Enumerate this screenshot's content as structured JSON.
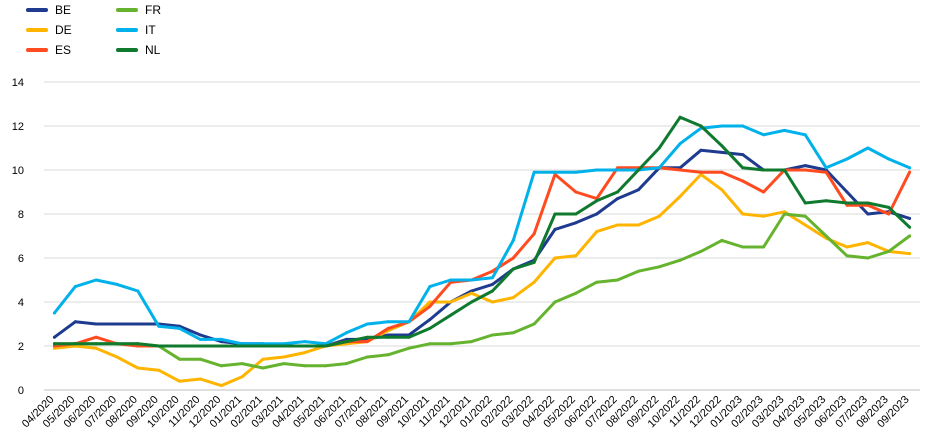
{
  "chart_data": {
    "type": "line",
    "title": "",
    "xlabel": "",
    "ylabel": "",
    "ylim": [
      0,
      14
    ],
    "yticks": [
      0,
      2,
      4,
      6,
      8,
      10,
      12,
      14
    ],
    "grid": "horizontal",
    "legend_position": "top-left",
    "categories": [
      "04/2020",
      "05/2020",
      "06/2020",
      "07/2020",
      "08/2020",
      "09/2020",
      "10/2020",
      "11/2020",
      "12/2020",
      "01/2021",
      "02/2021",
      "03/2021",
      "04/2021",
      "05/2021",
      "06/2021",
      "07/2021",
      "08/2021",
      "09/2021",
      "10/2021",
      "11/2021",
      "12/2021",
      "01/2022",
      "02/2022",
      "03/2022",
      "04/2022",
      "05/2022",
      "06/2022",
      "07/2022",
      "08/2022",
      "09/2022",
      "10/2022",
      "11/2022",
      "12/2022",
      "01/2023",
      "02/2023",
      "03/2023",
      "04/2023",
      "05/2023",
      "06/2023",
      "07/2023",
      "08/2023",
      "09/2023"
    ],
    "series": [
      {
        "name": "BE",
        "color": "#1f3b8f",
        "values": [
          2.4,
          3.1,
          3.0,
          3.0,
          3.0,
          3.0,
          2.9,
          2.5,
          2.2,
          2.1,
          2.1,
          2.0,
          2.0,
          2.0,
          2.3,
          2.3,
          2.5,
          2.5,
          3.2,
          4.0,
          4.5,
          4.8,
          5.5,
          5.9,
          7.3,
          7.6,
          8.0,
          8.7,
          9.1,
          10.1,
          10.1,
          10.9,
          10.8,
          10.7,
          10.0,
          10.0,
          10.2,
          10.0,
          9.0,
          8.0,
          8.1,
          7.8
        ]
      },
      {
        "name": "DE",
        "color": "#ffb400",
        "values": [
          1.9,
          2.0,
          1.9,
          1.5,
          1.0,
          0.9,
          0.4,
          0.5,
          0.2,
          0.6,
          1.4,
          1.5,
          1.7,
          2.0,
          2.1,
          2.2,
          2.7,
          3.1,
          4.0,
          4.0,
          4.4,
          4.0,
          4.2,
          4.9,
          6.0,
          6.1,
          7.2,
          7.5,
          7.5,
          7.9,
          8.8,
          9.8,
          9.1,
          8.0,
          7.9,
          8.1,
          7.5,
          6.9,
          6.5,
          6.7,
          6.3,
          6.2
        ]
      },
      {
        "name": "ES",
        "color": "#ff4b1f",
        "values": [
          2.0,
          2.1,
          2.4,
          2.1,
          2.0,
          2.0,
          2.0,
          2.0,
          2.0,
          2.0,
          2.0,
          2.0,
          2.0,
          2.0,
          2.2,
          2.2,
          2.8,
          3.1,
          3.8,
          4.9,
          5.0,
          5.4,
          6.0,
          7.1,
          9.8,
          9.0,
          8.7,
          10.1,
          10.1,
          10.1,
          10.0,
          9.9,
          9.9,
          9.5,
          9.0,
          10.0,
          10.0,
          9.9,
          8.4,
          8.4,
          8.0,
          9.9
        ]
      },
      {
        "name": "FR",
        "color": "#65b32e",
        "values": [
          2.1,
          2.1,
          2.1,
          2.1,
          2.1,
          2.0,
          1.4,
          1.4,
          1.1,
          1.2,
          1.0,
          1.2,
          1.1,
          1.1,
          1.2,
          1.5,
          1.6,
          1.9,
          2.1,
          2.1,
          2.2,
          2.5,
          2.6,
          3.0,
          4.0,
          4.4,
          4.9,
          5.0,
          5.4,
          5.6,
          5.9,
          6.3,
          6.8,
          6.5,
          6.5,
          8.0,
          7.9,
          7.0,
          6.1,
          6.0,
          6.3,
          7.0
        ]
      },
      {
        "name": "IT",
        "color": "#00b1ea",
        "values": [
          3.5,
          4.7,
          5.0,
          4.8,
          4.5,
          2.9,
          2.8,
          2.3,
          2.3,
          2.1,
          2.1,
          2.1,
          2.2,
          2.1,
          2.6,
          3.0,
          3.1,
          3.1,
          4.7,
          5.0,
          5.0,
          5.1,
          6.8,
          9.9,
          9.9,
          9.9,
          10.0,
          10.0,
          10.0,
          10.1,
          11.2,
          11.9,
          12.0,
          12.0,
          11.6,
          11.8,
          11.6,
          10.1,
          10.5,
          11.0,
          10.5,
          10.1
        ]
      },
      {
        "name": "NL",
        "color": "#0f7a2e",
        "values": [
          2.1,
          2.1,
          2.1,
          2.1,
          2.1,
          2.0,
          2.0,
          2.0,
          2.0,
          2.0,
          2.0,
          2.0,
          2.0,
          2.0,
          2.2,
          2.4,
          2.4,
          2.4,
          2.8,
          3.4,
          4.0,
          4.5,
          5.5,
          5.8,
          8.0,
          8.0,
          8.6,
          9.0,
          10.0,
          11.0,
          12.4,
          12.0,
          11.1,
          10.1,
          10.0,
          10.0,
          8.5,
          8.6,
          8.5,
          8.5,
          8.3,
          7.4
        ]
      }
    ]
  }
}
